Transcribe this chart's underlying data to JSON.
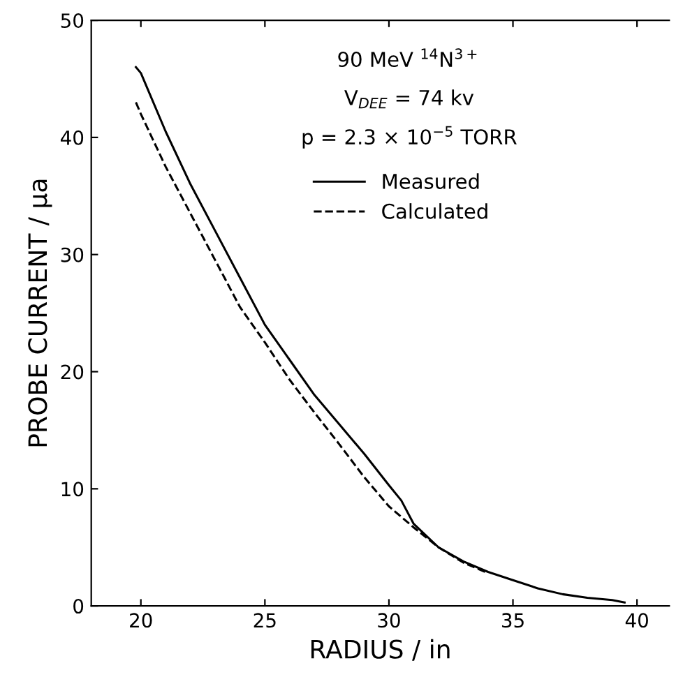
{
  "chart_data": {
    "type": "line",
    "xlabel": "RADIUS / in",
    "ylabel": "PROBE CURRENT / μa",
    "annotations": [
      "90 MeV $^{14}$N$^{3+}$",
      "V$_{DEE}$ = 74 kv",
      "p = 2.3 × 10$^{−5}$ TORR"
    ],
    "xlim": [
      18,
      41.3
    ],
    "xticks": [
      20,
      25,
      30,
      35,
      40
    ],
    "ylim": [
      0,
      50
    ],
    "yticks": [
      0,
      10,
      20,
      30,
      40,
      50
    ],
    "legend": "top right",
    "grid": false,
    "marker": "none",
    "series": [
      {
        "name": "Measured",
        "color": "#000000",
        "line_style": "solid",
        "x": [
          19.8,
          20,
          21,
          22,
          23,
          24,
          25,
          26,
          27,
          28,
          29,
          30,
          30.5,
          31,
          32,
          33,
          34,
          35,
          36,
          37,
          38,
          39,
          39.5
        ],
        "values": [
          46,
          45.5,
          40.5,
          36,
          32,
          28,
          24,
          21,
          18,
          15.5,
          13,
          10.3,
          9,
          7,
          5,
          3.8,
          2.9,
          2.2,
          1.5,
          1.0,
          0.7,
          0.5,
          0.3
        ]
      },
      {
        "name": "Calculated",
        "color": "#000000",
        "line_style": "dashed",
        "x": [
          19.8,
          20,
          21,
          22,
          23,
          24,
          25,
          26,
          27,
          28,
          29,
          30,
          31,
          32,
          33,
          34
        ],
        "values": [
          43,
          42,
          37.5,
          33.5,
          29.5,
          25.5,
          22.5,
          19.3,
          16.5,
          13.8,
          11,
          8.5,
          6.7,
          5,
          3.7,
          2.8
        ]
      }
    ]
  }
}
